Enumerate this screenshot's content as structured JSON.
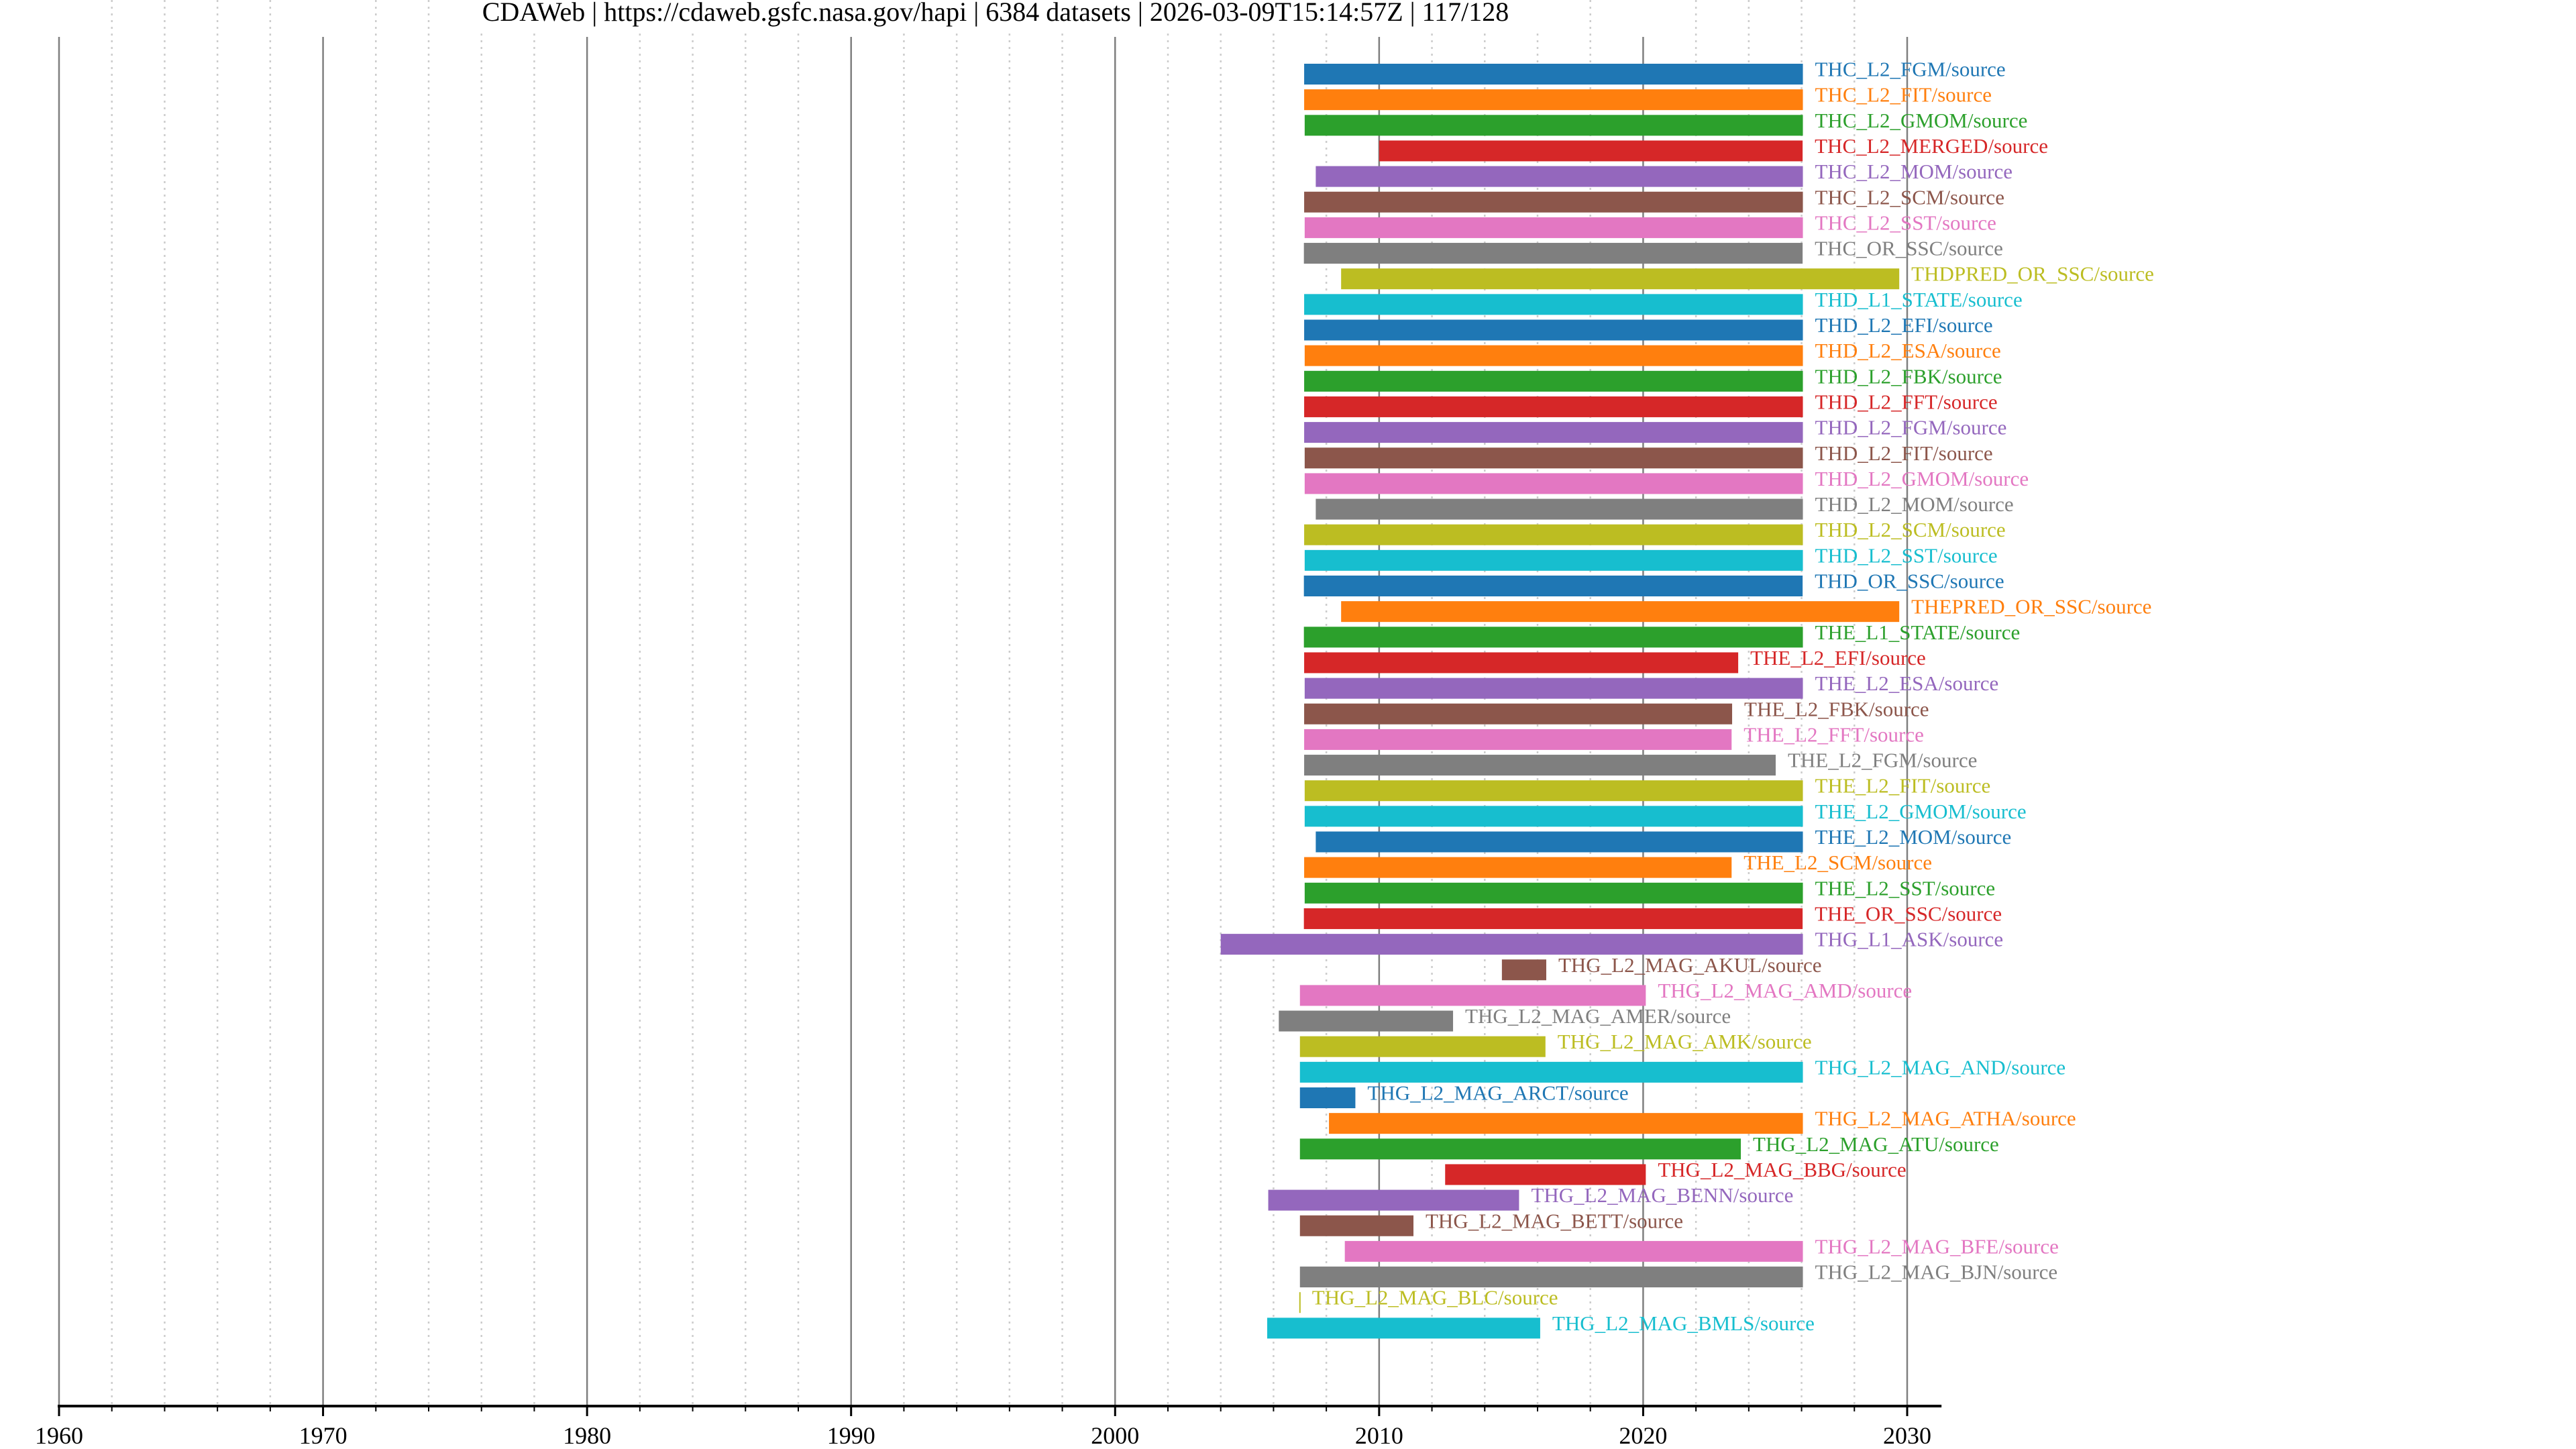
{
  "header": {
    "title": "CDAWeb | https://cdaweb.gsfc.nasa.gov/hapi | 6384 datasets | 2026-03-09T15:14:57Z | 117/128"
  },
  "chart_data": {
    "type": "timeline-bar",
    "title": "CDAWeb | https://cdaweb.gsfc.nasa.gov/hapi | 6384 datasets | 2026-03-09T15:14:57Z | 117/128",
    "xlabel": "",
    "ylabel": "",
    "xlim": [
      1960,
      2031.3
    ],
    "x_major_ticks": [
      1960,
      1970,
      1980,
      1990,
      2000,
      2010,
      2020,
      2030
    ],
    "x_tick_labels": [
      "1960",
      "1970",
      "1980",
      "1990",
      "2000",
      "2010",
      "2020",
      "2030"
    ],
    "x_minor_step": 2,
    "grid": {
      "major": "solid",
      "minor": "dotted",
      "axis": "x"
    },
    "legend": "none (labels at bar ends)",
    "palette": [
      "#1f77b4",
      "#ff7f0e",
      "#2ca02c",
      "#d62728",
      "#9467bd",
      "#8c564b",
      "#e377c2",
      "#7f7f7f",
      "#bcbd22",
      "#17becf"
    ],
    "series": [
      {
        "name": "THC_L2_FGM/source",
        "start": 2007.16,
        "end": 2026.05
      },
      {
        "name": "THC_L2_FIT/source",
        "start": 2007.16,
        "end": 2026.05
      },
      {
        "name": "THC_L2_GMOM/source",
        "start": 2007.18,
        "end": 2026.05
      },
      {
        "name": "THC_L2_MERGED/source",
        "start": 2010.0,
        "end": 2026.04
      },
      {
        "name": "THC_L2_MOM/source",
        "start": 2007.6,
        "end": 2026.05
      },
      {
        "name": "THC_L2_SCM/source",
        "start": 2007.16,
        "end": 2026.05
      },
      {
        "name": "THC_L2_SST/source",
        "start": 2007.18,
        "end": 2026.05
      },
      {
        "name": "THC_OR_SSC/source",
        "start": 2007.15,
        "end": 2026.04
      },
      {
        "name": "THDPRED_OR_SSC/source",
        "start": 2008.56,
        "end": 2029.7
      },
      {
        "name": "THD_L1_STATE/source",
        "start": 2007.16,
        "end": 2026.05
      },
      {
        "name": "THD_L2_EFI/source",
        "start": 2007.16,
        "end": 2026.05
      },
      {
        "name": "THD_L2_ESA/source",
        "start": 2007.18,
        "end": 2026.05
      },
      {
        "name": "THD_L2_FBK/source",
        "start": 2007.16,
        "end": 2026.05
      },
      {
        "name": "THD_L2_FFT/source",
        "start": 2007.16,
        "end": 2026.05
      },
      {
        "name": "THD_L2_FGM/source",
        "start": 2007.16,
        "end": 2026.05
      },
      {
        "name": "THD_L2_FIT/source",
        "start": 2007.18,
        "end": 2026.05
      },
      {
        "name": "THD_L2_GMOM/source",
        "start": 2007.18,
        "end": 2026.05
      },
      {
        "name": "THD_L2_MOM/source",
        "start": 2007.6,
        "end": 2026.05
      },
      {
        "name": "THD_L2_SCM/source",
        "start": 2007.16,
        "end": 2026.05
      },
      {
        "name": "THD_L2_SST/source",
        "start": 2007.18,
        "end": 2026.05
      },
      {
        "name": "THD_OR_SSC/source",
        "start": 2007.15,
        "end": 2026.04
      },
      {
        "name": "THEPRED_OR_SSC/source",
        "start": 2008.56,
        "end": 2029.7
      },
      {
        "name": "THE_L1_STATE/source",
        "start": 2007.15,
        "end": 2026.05
      },
      {
        "name": "THE_L2_EFI/source",
        "start": 2007.16,
        "end": 2023.6
      },
      {
        "name": "THE_L2_ESA/source",
        "start": 2007.18,
        "end": 2026.05
      },
      {
        "name": "THE_L2_FBK/source",
        "start": 2007.16,
        "end": 2023.37
      },
      {
        "name": "THE_L2_FFT/source",
        "start": 2007.16,
        "end": 2023.35
      },
      {
        "name": "THE_L2_FGM/source",
        "start": 2007.16,
        "end": 2025.02
      },
      {
        "name": "THE_L2_FIT/source",
        "start": 2007.18,
        "end": 2026.05
      },
      {
        "name": "THE_L2_GMOM/source",
        "start": 2007.18,
        "end": 2026.05
      },
      {
        "name": "THE_L2_MOM/source",
        "start": 2007.6,
        "end": 2026.05
      },
      {
        "name": "THE_L2_SCM/source",
        "start": 2007.16,
        "end": 2023.35
      },
      {
        "name": "THE_L2_SST/source",
        "start": 2007.18,
        "end": 2026.05
      },
      {
        "name": "THE_OR_SSC/source",
        "start": 2007.15,
        "end": 2026.04
      },
      {
        "name": "THG_L1_ASK/source",
        "start": 2004.0,
        "end": 2026.05
      },
      {
        "name": "THG_L2_MAG_AKUL/source",
        "start": 2014.65,
        "end": 2016.33
      },
      {
        "name": "THG_L2_MAG_AMD/source",
        "start": 2007.0,
        "end": 2020.1
      },
      {
        "name": "THG_L2_MAG_AMER/source",
        "start": 2006.2,
        "end": 2012.8
      },
      {
        "name": "THG_L2_MAG_AMK/source",
        "start": 2007.0,
        "end": 2016.3
      },
      {
        "name": "THG_L2_MAG_AND/source",
        "start": 2007.0,
        "end": 2026.05
      },
      {
        "name": "THG_L2_MAG_ARCT/source",
        "start": 2007.0,
        "end": 2009.1
      },
      {
        "name": "THG_L2_MAG_ATHA/source",
        "start": 2008.1,
        "end": 2026.05
      },
      {
        "name": "THG_L2_MAG_ATU/source",
        "start": 2007.0,
        "end": 2023.7
      },
      {
        "name": "THG_L2_MAG_BBG/source",
        "start": 2012.5,
        "end": 2020.1
      },
      {
        "name": "THG_L2_MAG_BENN/source",
        "start": 2005.8,
        "end": 2015.3
      },
      {
        "name": "THG_L2_MAG_BETT/source",
        "start": 2007.0,
        "end": 2011.3
      },
      {
        "name": "THG_L2_MAG_BFE/source",
        "start": 2008.7,
        "end": 2026.05
      },
      {
        "name": "THG_L2_MAG_BJN/source",
        "start": 2007.0,
        "end": 2026.05
      },
      {
        "name": "THG_L2_MAG_BLC/source",
        "start": 2007.0,
        "end": 2007.0
      },
      {
        "name": "THG_L2_MAG_BMLS/source",
        "start": 2005.76,
        "end": 2016.1
      }
    ]
  }
}
